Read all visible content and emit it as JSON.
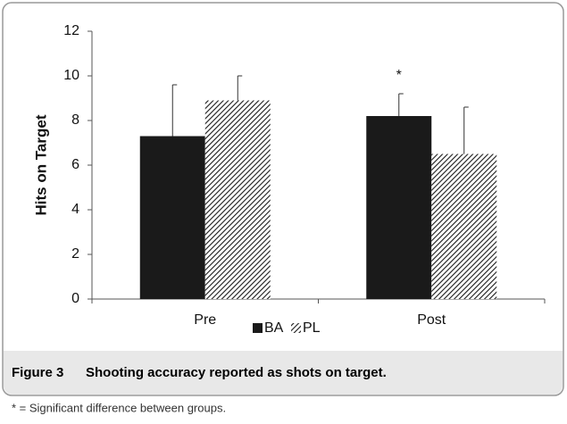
{
  "chart_data": {
    "type": "bar",
    "ylabel": "Hits on Target",
    "categories": [
      "Pre",
      "Post"
    ],
    "series": [
      {
        "name": "BA",
        "color": "#1a1a1a",
        "pattern": "solid",
        "values": [
          7.3,
          8.2
        ],
        "errors": [
          2.3,
          1.0
        ]
      },
      {
        "name": "PL",
        "color": "#1a1a1a",
        "pattern": "hatch",
        "values": [
          8.9,
          6.5
        ],
        "errors": [
          1.1,
          2.1
        ]
      }
    ],
    "annotation": "*",
    "ylim": [
      0,
      12
    ],
    "yticks": [
      0,
      2,
      4,
      6,
      8,
      10,
      12
    ],
    "legend": "bottom"
  },
  "caption": {
    "label": "Figure 3",
    "text": "Shooting accuracy reported as shots on target."
  },
  "footnote": "* = Significant difference between groups."
}
